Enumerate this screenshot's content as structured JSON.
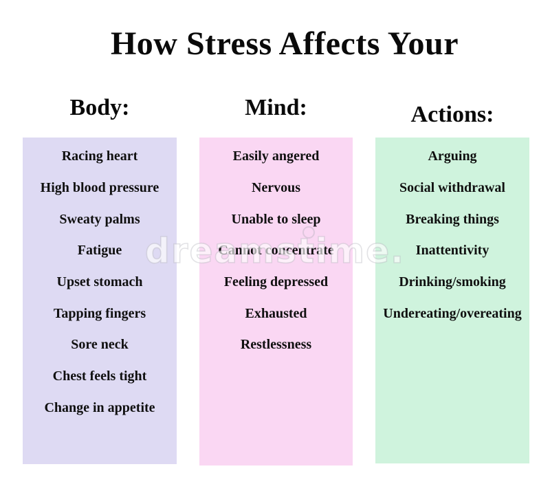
{
  "title": "How Stress Affects Your",
  "watermark": {
    "text": "dreamstime."
  },
  "columns": [
    {
      "header": "Body:",
      "color": "#dedaf3",
      "items": [
        "Racing heart",
        "High blood pressure",
        "Sweaty palms",
        "Fatigue",
        "Upset stomach",
        "Tapping fingers",
        "Sore neck",
        "Chest feels tight",
        "Change in appetite"
      ]
    },
    {
      "header": "Mind:",
      "color": "#fad7f3",
      "items": [
        "Easily angered",
        "Nervous",
        "Unable to sleep",
        "Cannot concentrate",
        "Feeling depressed",
        "Exhausted",
        "Restlessness"
      ]
    },
    {
      "header": "Actions:",
      "color": "#cff3dd",
      "items": [
        "Arguing",
        "Social withdrawal",
        "Breaking things",
        "Inattentivity",
        "Drinking/smoking",
        "Undereating/overeating"
      ]
    }
  ]
}
